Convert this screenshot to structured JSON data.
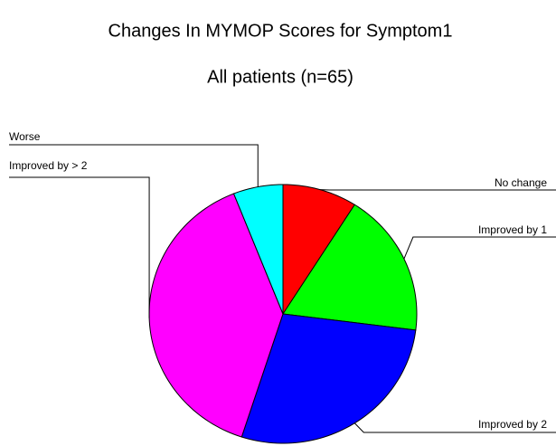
{
  "chart_data": {
    "type": "pie",
    "title": "Changes In MYMOP Scores for Symptom1",
    "subtitle": "All patients (n=65)",
    "categories": [
      "No change",
      "Improved by 1",
      "Improved by 2",
      "Improved by > 2",
      "Worse"
    ],
    "values": [
      9,
      18,
      28,
      39,
      6
    ],
    "colors": [
      "#ff0000",
      "#00ff00",
      "#0000ff",
      "#ff00ff",
      "#00ffff"
    ]
  }
}
